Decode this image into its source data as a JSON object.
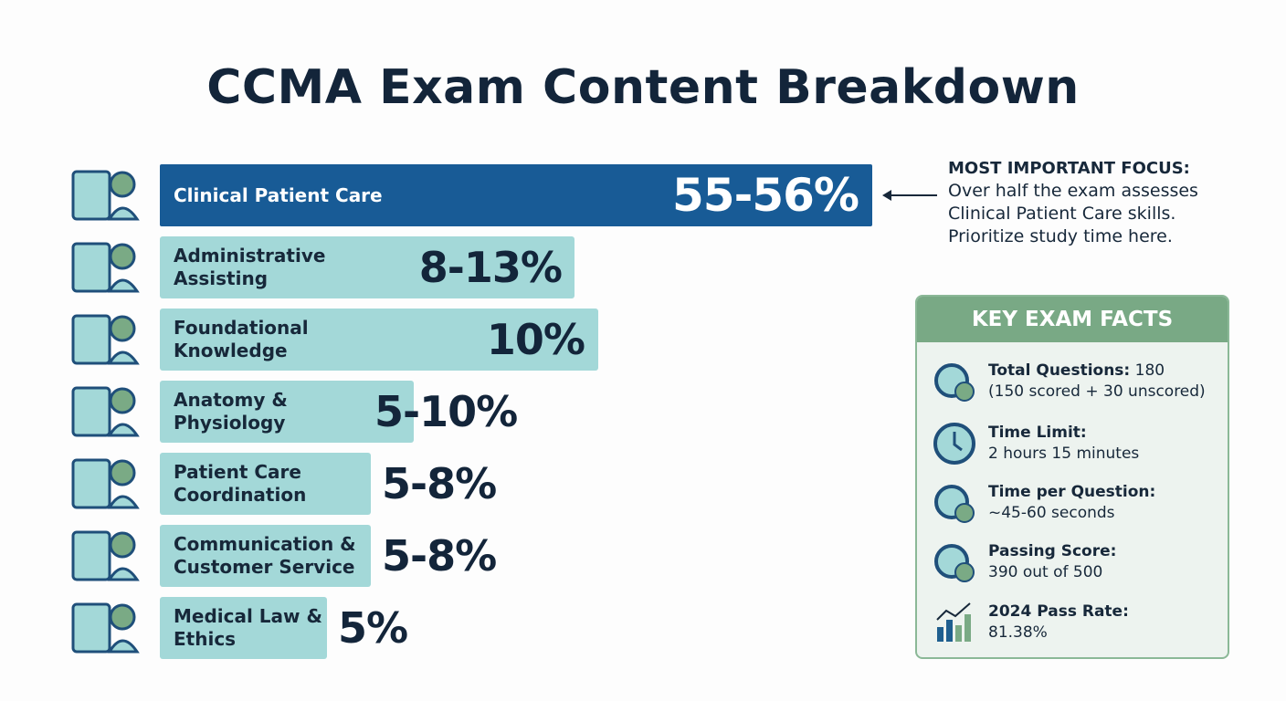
{
  "title": "CCMA Exam Content Breakdown",
  "chart_data": {
    "type": "bar",
    "orientation": "horizontal",
    "categories": [
      "Clinical Patient Care",
      "Administrative Assisting",
      "Foundational Knowledge",
      "Anatomy & Physiology",
      "Patient Care Coordination",
      "Communication & Customer Service",
      "Medical Law & Ethics"
    ],
    "labels": [
      "55-56%",
      "8-13%",
      "10%",
      "5-10%",
      "5-8%",
      "5-8%",
      "5%"
    ],
    "values": [
      [
        55,
        56
      ],
      [
        8,
        13
      ],
      [
        10,
        10
      ],
      [
        5,
        10
      ],
      [
        5,
        8
      ],
      [
        5,
        8
      ],
      [
        5,
        5
      ]
    ],
    "icons": [
      "stethoscope-doctor-icon",
      "clipboard-computer-icon",
      "book-gear-icon",
      "anatomy-brain-icon",
      "patient-coordination-icon",
      "communication-icon",
      "gavel-caduceus-icon"
    ],
    "colors": {
      "highlight": "#185b96",
      "default": "#a3d8d8"
    }
  },
  "callout": {
    "heading": "MOST IMPORTANT FOCUS:",
    "lines": [
      "Over half the exam assesses",
      "Clinical Patient Care skills.",
      "Prioritize study time here."
    ]
  },
  "facts": {
    "heading": "KEY EXAM FACTS",
    "items": [
      {
        "label": "Total Questions:",
        "value": "180",
        "detail": "(150 scored + 30 unscored)",
        "icon": "stopwatch-clipboard-icon"
      },
      {
        "label": "Time Limit:",
        "value": "",
        "detail": "2 hours 15 minutes",
        "icon": "clock-icon"
      },
      {
        "label": "Time per Question:",
        "value": "",
        "detail": "~45-60 seconds",
        "icon": "hourglass-question-icon"
      },
      {
        "label": "Passing Score:",
        "value": "",
        "detail": "390 out of 500",
        "icon": "award-ribbon-icon"
      },
      {
        "label": "2024 Pass Rate:",
        "value": "",
        "detail": "81.38%",
        "icon": "bar-chart-trend-icon"
      }
    ]
  }
}
